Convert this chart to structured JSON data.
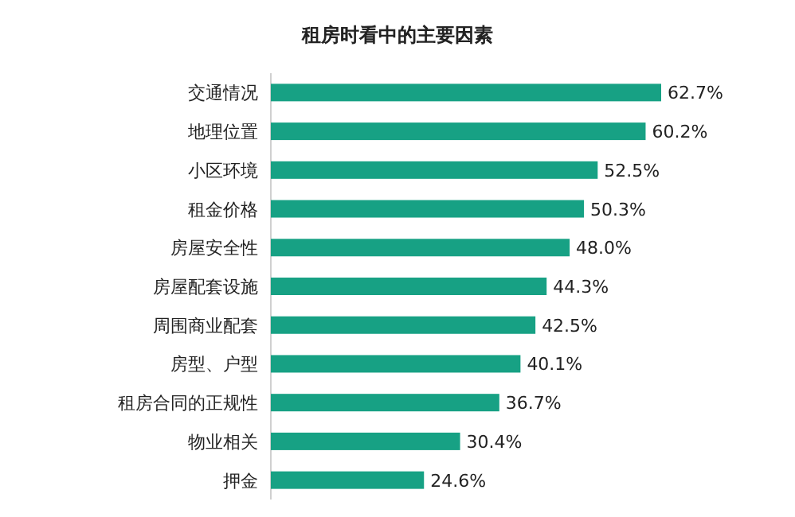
{
  "chart_data": {
    "type": "bar",
    "orientation": "horizontal",
    "title": "租房时看中的主要因素",
    "categories": [
      "交通情况",
      "地理位置",
      "小区环境",
      "租金价格",
      "房屋安全性",
      "房屋配套设施",
      "周围商业配套",
      "房型、户型",
      "租房合同的正规性",
      "物业相关",
      "押金"
    ],
    "values": [
      62.7,
      60.2,
      52.5,
      50.3,
      48.0,
      44.3,
      42.5,
      40.1,
      36.7,
      30.4,
      24.6
    ],
    "value_labels": [
      "62.7%",
      "60.2%",
      "52.5%",
      "50.3%",
      "48.0%",
      "44.3%",
      "42.5%",
      "40.1%",
      "36.7%",
      "30.4%",
      "24.6%"
    ],
    "color": "#17a184"
  }
}
